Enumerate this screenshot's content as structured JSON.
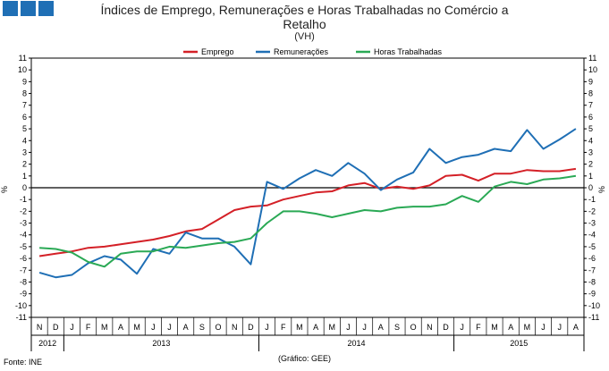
{
  "header": {
    "title_line1": "Índices de Emprego, Remunerações e Horas Trabalhadas no Comércio a",
    "title_line2": "Retalho",
    "subtitle": "(VH)"
  },
  "footer": {
    "source": "Fonte: INE",
    "credit": "(Gráfico: GEE)"
  },
  "colors": {
    "emprego": "#d42027",
    "remuneracoes": "#1f6fb5",
    "horas": "#2aa955",
    "logo": "#1f6fb5"
  },
  "chart_data": {
    "type": "line",
    "title": "Índices de Emprego, Remunerações e Horas Trabalhadas no Comércio a Retalho",
    "subtitle": "(VH)",
    "ylabel_left": "%",
    "ylabel_right": "%",
    "ylim": [
      -11,
      11
    ],
    "yticks": [
      11,
      10,
      9,
      8,
      7,
      6,
      5,
      4,
      3,
      2,
      1,
      0,
      -1,
      -2,
      -3,
      -4,
      -5,
      -6,
      -7,
      -8,
      -9,
      -10,
      -11
    ],
    "grid": false,
    "legend_position": "top-center",
    "categories": [
      "N",
      "D",
      "J",
      "F",
      "M",
      "A",
      "M",
      "J",
      "J",
      "A",
      "S",
      "O",
      "N",
      "D",
      "J",
      "F",
      "M",
      "A",
      "M",
      "J",
      "J",
      "A",
      "S",
      "O",
      "N",
      "D",
      "J",
      "F",
      "M",
      "A",
      "M",
      "J",
      "J",
      "A"
    ],
    "year_labels": [
      {
        "label": "2012",
        "start": 0,
        "end": 1
      },
      {
        "label": "2013",
        "start": 2,
        "end": 13
      },
      {
        "label": "2014",
        "start": 14,
        "end": 25
      },
      {
        "label": "2015",
        "start": 26,
        "end": 33
      }
    ],
    "series": [
      {
        "name": "Emprego",
        "color": "#d42027",
        "values": [
          -5.8,
          -5.6,
          -5.4,
          -5.1,
          -5.0,
          -4.8,
          -4.6,
          -4.4,
          -4.1,
          -3.7,
          -3.5,
          -2.7,
          -1.9,
          -1.6,
          -1.5,
          -1.0,
          -0.7,
          -0.4,
          -0.3,
          0.2,
          0.4,
          -0.1,
          0.1,
          -0.1,
          0.2,
          1.0,
          1.1,
          0.6,
          1.2,
          1.2,
          1.5,
          1.4,
          1.4,
          1.6
        ]
      },
      {
        "name": "Remunerações",
        "color": "#1f6fb5",
        "values": [
          -7.2,
          -7.6,
          -7.4,
          -6.4,
          -5.8,
          -6.1,
          -7.3,
          -5.2,
          -5.6,
          -3.8,
          -4.3,
          -4.3,
          -5.0,
          -6.5,
          0.5,
          -0.1,
          0.8,
          1.5,
          1.0,
          2.1,
          1.2,
          -0.2,
          0.7,
          1.3,
          3.3,
          2.1,
          2.6,
          2.8,
          3.3,
          3.1,
          4.9,
          3.3,
          4.1,
          5.0
        ]
      },
      {
        "name": "Horas Trabalhadas",
        "color": "#2aa955",
        "values": [
          -5.1,
          -5.2,
          -5.5,
          -6.3,
          -6.7,
          -5.6,
          -5.4,
          -5.4,
          -5.0,
          -5.1,
          -4.9,
          -4.7,
          -4.6,
          -4.3,
          -3.0,
          -2.0,
          -2.0,
          -2.2,
          -2.5,
          -2.2,
          -1.9,
          -2.0,
          -1.7,
          -1.6,
          -1.6,
          -1.4,
          -0.7,
          -1.2,
          0.1,
          0.5,
          0.3,
          0.7,
          0.8,
          1.0
        ]
      }
    ]
  }
}
